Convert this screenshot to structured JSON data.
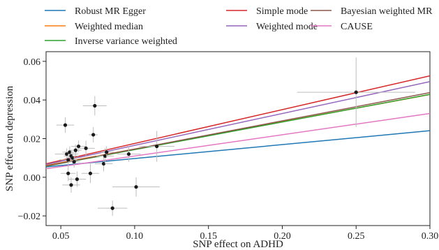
{
  "chart_data": {
    "type": "scatter",
    "title": "",
    "xlabel": "SNP effect on ADHD",
    "ylabel": "SNP effect on depression",
    "xlim": [
      0.04,
      0.3
    ],
    "ylim": [
      -0.025,
      0.065
    ],
    "x_ticks": [
      0.05,
      0.1,
      0.15,
      0.2,
      0.25,
      0.3
    ],
    "x_tick_labels": [
      "0.05",
      "0.10",
      "0.15",
      "0.20",
      "0.25",
      "0.30"
    ],
    "y_ticks": [
      -0.02,
      0.0,
      0.02,
      0.04,
      0.06
    ],
    "y_tick_labels": [
      "−0.02",
      "0.00",
      "0.02",
      "0.04",
      "0.06"
    ],
    "grid": false,
    "legend_position": "top",
    "points": [
      {
        "x": 0.053,
        "y": 0.027,
        "xerr": 0.006,
        "yerr": 0.004
      },
      {
        "x": 0.054,
        "y": 0.012,
        "xerr": 0.008,
        "yerr": 0.003
      },
      {
        "x": 0.055,
        "y": 0.009,
        "xerr": 0.006,
        "yerr": 0.003
      },
      {
        "x": 0.056,
        "y": 0.013,
        "xerr": 0.005,
        "yerr": 0.003
      },
      {
        "x": 0.057,
        "y": 0.011,
        "xerr": 0.005,
        "yerr": 0.003
      },
      {
        "x": 0.058,
        "y": 0.01,
        "xerr": 0.004,
        "yerr": 0.003
      },
      {
        "x": 0.059,
        "y": 0.008,
        "xerr": 0.004,
        "yerr": 0.003
      },
      {
        "x": 0.06,
        "y": 0.014,
        "xerr": 0.004,
        "yerr": 0.003
      },
      {
        "x": 0.062,
        "y": 0.016,
        "xerr": 0.005,
        "yerr": 0.003
      },
      {
        "x": 0.055,
        "y": 0.002,
        "xerr": 0.005,
        "yerr": 0.004
      },
      {
        "x": 0.057,
        "y": -0.004,
        "xerr": 0.006,
        "yerr": 0.004
      },
      {
        "x": 0.061,
        "y": -0.001,
        "xerr": 0.006,
        "yerr": 0.004
      },
      {
        "x": 0.067,
        "y": 0.015,
        "xerr": 0.006,
        "yerr": 0.004
      },
      {
        "x": 0.07,
        "y": 0.002,
        "xerr": 0.006,
        "yerr": 0.005
      },
      {
        "x": 0.072,
        "y": 0.022,
        "xerr": 0.003,
        "yerr": 0.004
      },
      {
        "x": 0.073,
        "y": 0.037,
        "xerr": 0.008,
        "yerr": 0.005
      },
      {
        "x": 0.079,
        "y": 0.007,
        "xerr": 0.006,
        "yerr": 0.004
      },
      {
        "x": 0.08,
        "y": 0.011,
        "xerr": 0.006,
        "yerr": 0.004
      },
      {
        "x": 0.081,
        "y": 0.013,
        "xerr": 0.005,
        "yerr": 0.003
      },
      {
        "x": 0.085,
        "y": -0.016,
        "xerr": 0.01,
        "yerr": 0.004
      },
      {
        "x": 0.096,
        "y": 0.012,
        "xerr": 0.008,
        "yerr": 0.004
      },
      {
        "x": 0.101,
        "y": -0.005,
        "xerr": 0.016,
        "yerr": 0.005
      },
      {
        "x": 0.115,
        "y": 0.016,
        "xerr": 0.012,
        "yerr": 0.008
      },
      {
        "x": 0.25,
        "y": 0.044,
        "xerr": 0.04,
        "yerr": 0.018
      }
    ],
    "lines": [
      {
        "name": "Robust MR Egger",
        "color": "#1f77b4",
        "intercept": 0.0025,
        "slope": 0.072
      },
      {
        "name": "Weighted median",
        "color": "#ff7f0e",
        "intercept": 0.0005,
        "slope": 0.141
      },
      {
        "name": "Inverse variance weighted",
        "color": "#2ca02c",
        "intercept": 0.0,
        "slope": 0.143
      },
      {
        "name": "Simple mode",
        "color": "#d62728",
        "intercept": 0.0,
        "slope": 0.175
      },
      {
        "name": "Weighted mode",
        "color": "#9467bd",
        "intercept": 0.0,
        "slope": 0.165
      },
      {
        "name": "Bayesian weighted MR",
        "color": "#8c564b",
        "intercept": 0.0,
        "slope": 0.146
      },
      {
        "name": "CAUSE",
        "color": "#e377c2",
        "intercept": 0.0,
        "slope": 0.11
      }
    ]
  }
}
